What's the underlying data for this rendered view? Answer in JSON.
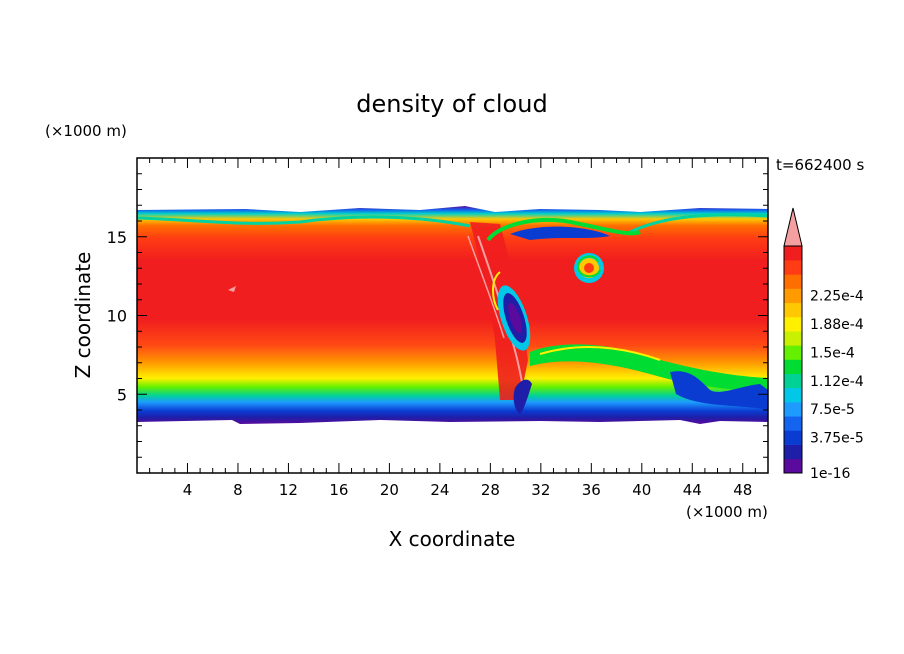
{
  "chart_data": {
    "type": "heatmap",
    "title": "density of cloud",
    "xlabel": "X coordinate",
    "ylabel": "Z coordinate",
    "x_unit": "(×1000 m)",
    "y_unit": "(×1000 m)",
    "time_label": "t=662400 s",
    "xlim": [
      0,
      50
    ],
    "ylim": [
      0,
      20
    ],
    "x_ticks": [
      "4",
      "8",
      "12",
      "16",
      "20",
      "24",
      "28",
      "32",
      "36",
      "40",
      "44",
      "48"
    ],
    "y_ticks": [
      "5",
      "10",
      "15"
    ],
    "colorbar": {
      "labels": [
        "1e-16",
        "3.75e-5",
        "7.5e-5",
        "1.12e-4",
        "1.5e-4",
        "1.88e-4",
        "2.25e-4"
      ],
      "colors": [
        "#5a0a9c",
        "#1e1ea8",
        "#0a3cd2",
        "#1464f0",
        "#1e9bff",
        "#00c8e6",
        "#00d296",
        "#00dc32",
        "#64f000",
        "#c8f000",
        "#fff000",
        "#ffc800",
        "#ff9b00",
        "#ff6e00",
        "#ff3c14",
        "#f01e1e"
      ],
      "overflow_color": "#f5a0a0"
    },
    "cloud_layer": {
      "base_z_km": 3.5,
      "top_z_km": 16.5,
      "max_density_z_range_km": [
        8,
        14
      ],
      "note_features": [
        "vortex near x=35 km, z=13 km",
        "eddy near x=30 km, z=10 km"
      ]
    }
  }
}
